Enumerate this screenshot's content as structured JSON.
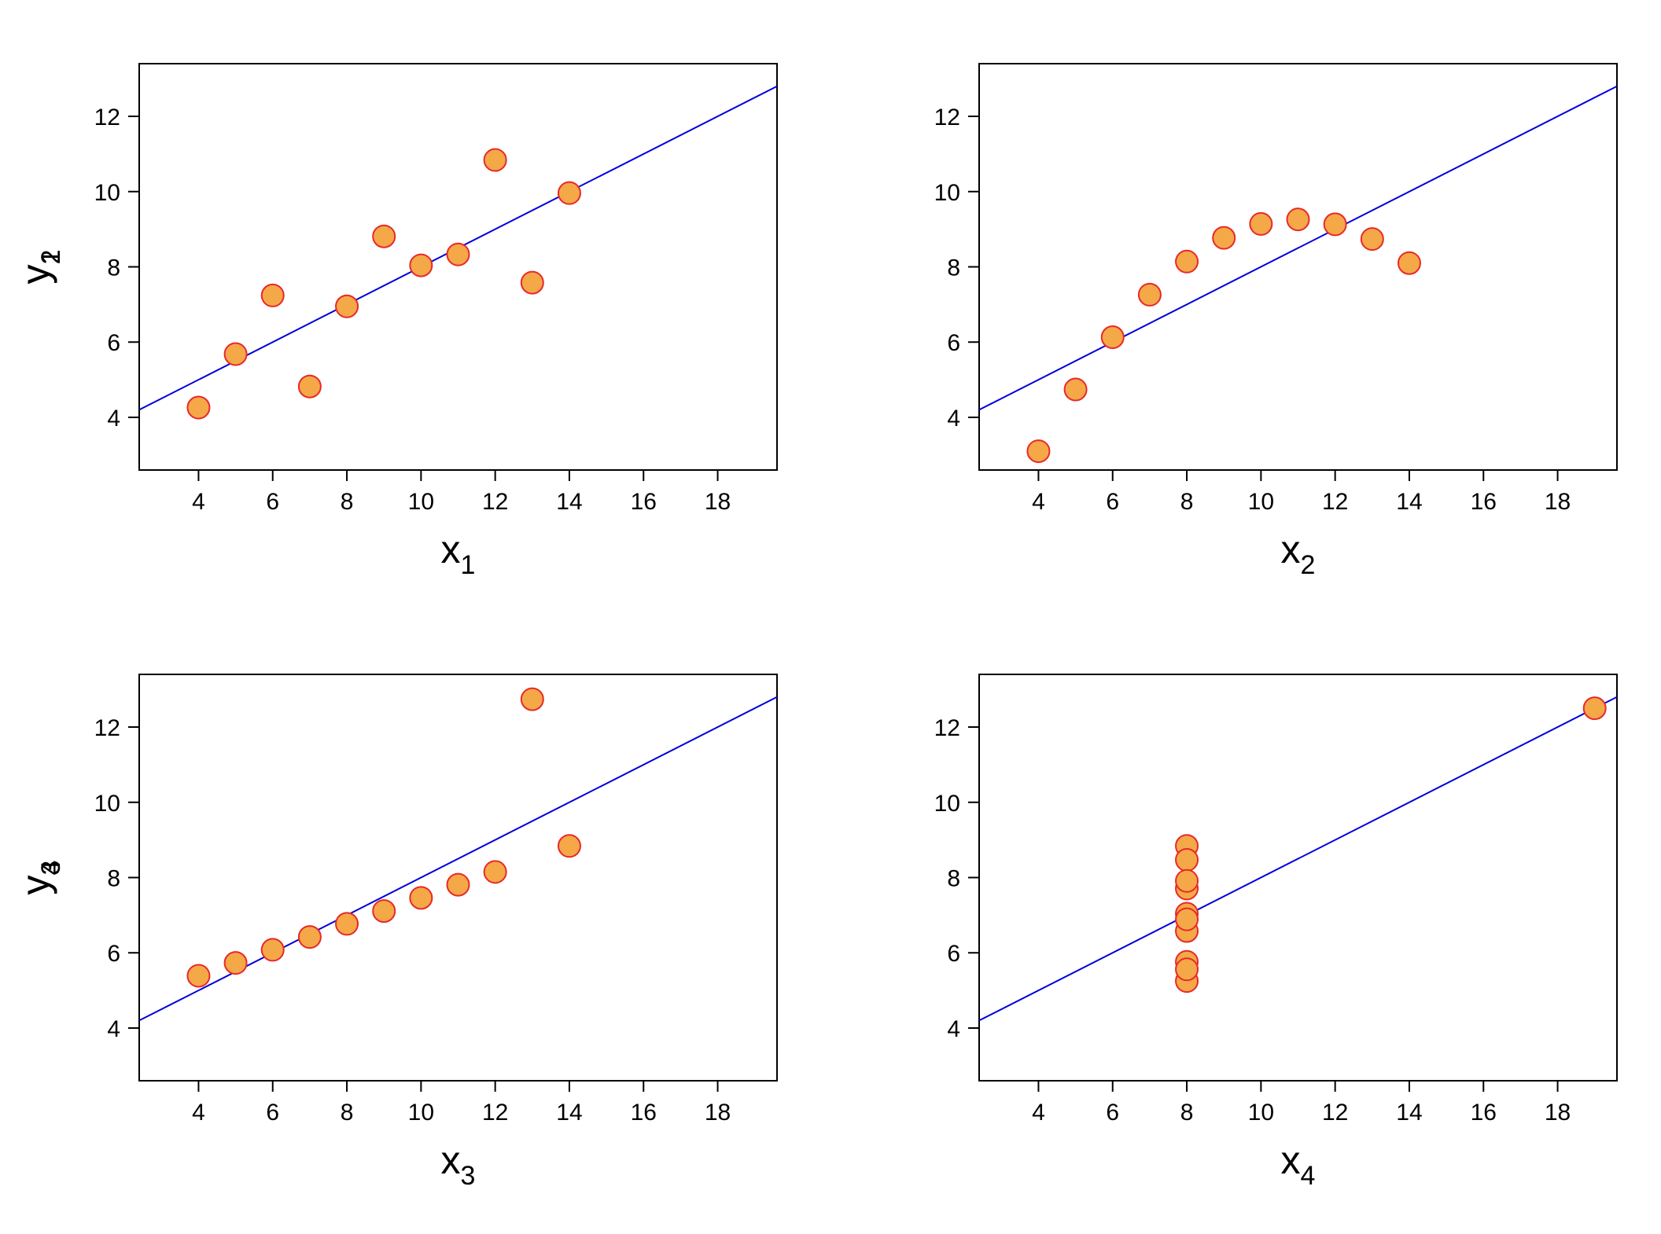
{
  "style": {
    "point_fill": "#f5a847",
    "point_stroke": "#e8282a",
    "line_color": "#0000dd",
    "frame_color": "#000000"
  },
  "chart_data": [
    {
      "type": "scatter",
      "title": "",
      "xlabel": "x",
      "xlabel_sub": "1",
      "ylabel": "y",
      "ylabel_sub": "1",
      "xlim": [
        2.4,
        19.6
      ],
      "ylim": [
        2.6,
        13.4
      ],
      "xticks": [
        4,
        6,
        8,
        10,
        12,
        14,
        16,
        18
      ],
      "yticks": [
        4,
        6,
        8,
        10,
        12
      ],
      "grid": false,
      "points": [
        {
          "x": 10,
          "y": 8.04
        },
        {
          "x": 8,
          "y": 6.95
        },
        {
          "x": 13,
          "y": 7.58
        },
        {
          "x": 9,
          "y": 8.81
        },
        {
          "x": 11,
          "y": 8.33
        },
        {
          "x": 14,
          "y": 9.96
        },
        {
          "x": 6,
          "y": 7.24
        },
        {
          "x": 4,
          "y": 4.26
        },
        {
          "x": 12,
          "y": 10.84
        },
        {
          "x": 7,
          "y": 4.82
        },
        {
          "x": 5,
          "y": 5.68
        }
      ],
      "fit_line": {
        "intercept": 3.0,
        "slope": 0.5
      }
    },
    {
      "type": "scatter",
      "title": "",
      "xlabel": "x",
      "xlabel_sub": "2",
      "ylabel": "y",
      "ylabel_sub": "2",
      "xlim": [
        2.4,
        19.6
      ],
      "ylim": [
        2.6,
        13.4
      ],
      "xticks": [
        4,
        6,
        8,
        10,
        12,
        14,
        16,
        18
      ],
      "yticks": [
        4,
        6,
        8,
        10,
        12
      ],
      "grid": false,
      "points": [
        {
          "x": 10,
          "y": 9.14
        },
        {
          "x": 8,
          "y": 8.14
        },
        {
          "x": 13,
          "y": 8.74
        },
        {
          "x": 9,
          "y": 8.77
        },
        {
          "x": 11,
          "y": 9.26
        },
        {
          "x": 14,
          "y": 8.1
        },
        {
          "x": 6,
          "y": 6.13
        },
        {
          "x": 4,
          "y": 3.1
        },
        {
          "x": 12,
          "y": 9.13
        },
        {
          "x": 7,
          "y": 7.26
        },
        {
          "x": 5,
          "y": 4.74
        }
      ],
      "fit_line": {
        "intercept": 3.0,
        "slope": 0.5
      }
    },
    {
      "type": "scatter",
      "title": "",
      "xlabel": "x",
      "xlabel_sub": "3",
      "ylabel": "y",
      "ylabel_sub": "3",
      "xlim": [
        2.4,
        19.6
      ],
      "ylim": [
        2.6,
        13.4
      ],
      "xticks": [
        4,
        6,
        8,
        10,
        12,
        14,
        16,
        18
      ],
      "yticks": [
        4,
        6,
        8,
        10,
        12
      ],
      "grid": false,
      "points": [
        {
          "x": 10,
          "y": 7.46
        },
        {
          "x": 8,
          "y": 6.77
        },
        {
          "x": 13,
          "y": 12.74
        },
        {
          "x": 9,
          "y": 7.11
        },
        {
          "x": 11,
          "y": 7.81
        },
        {
          "x": 14,
          "y": 8.84
        },
        {
          "x": 6,
          "y": 6.08
        },
        {
          "x": 4,
          "y": 5.39
        },
        {
          "x": 12,
          "y": 8.15
        },
        {
          "x": 7,
          "y": 6.42
        },
        {
          "x": 5,
          "y": 5.73
        }
      ],
      "fit_line": {
        "intercept": 3.0,
        "slope": 0.5
      }
    },
    {
      "type": "scatter",
      "title": "",
      "xlabel": "x",
      "xlabel_sub": "4",
      "ylabel": "y",
      "ylabel_sub": "4",
      "xlim": [
        2.4,
        19.6
      ],
      "ylim": [
        2.6,
        13.4
      ],
      "xticks": [
        4,
        6,
        8,
        10,
        12,
        14,
        16,
        18
      ],
      "yticks": [
        4,
        6,
        8,
        10,
        12
      ],
      "grid": false,
      "points": [
        {
          "x": 8,
          "y": 6.58
        },
        {
          "x": 8,
          "y": 5.76
        },
        {
          "x": 8,
          "y": 7.71
        },
        {
          "x": 8,
          "y": 8.84
        },
        {
          "x": 8,
          "y": 8.47
        },
        {
          "x": 8,
          "y": 7.04
        },
        {
          "x": 8,
          "y": 5.25
        },
        {
          "x": 19,
          "y": 12.5
        },
        {
          "x": 8,
          "y": 5.56
        },
        {
          "x": 8,
          "y": 7.91
        },
        {
          "x": 8,
          "y": 6.89
        }
      ],
      "fit_line": {
        "intercept": 3.0,
        "slope": 0.5
      }
    }
  ]
}
